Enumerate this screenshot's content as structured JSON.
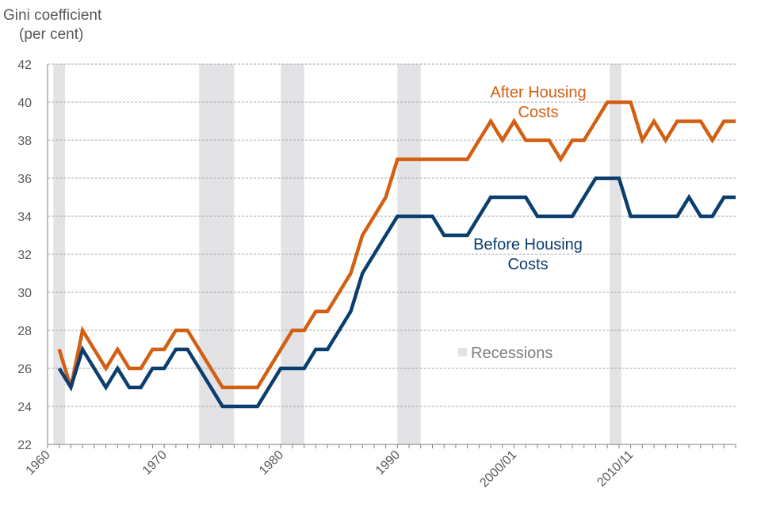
{
  "chart_data": {
    "type": "line",
    "ylabel_line1": "Gini coefficient",
    "ylabel_line2": "(per cent)",
    "ylim": [
      22,
      42
    ],
    "yticks": [
      22,
      24,
      26,
      28,
      30,
      32,
      34,
      36,
      38,
      40,
      42
    ],
    "xlim": [
      1960,
      2019
    ],
    "xticks": [
      {
        "label": "1960",
        "value": 1960
      },
      {
        "label": "1970",
        "value": 1970
      },
      {
        "label": "1980",
        "value": 1980
      },
      {
        "label": "1990",
        "value": 1990
      },
      {
        "label": "2000/01",
        "value": 2000
      },
      {
        "label": "2010/11",
        "value": 2010
      }
    ],
    "recessions": [
      [
        1960.5,
        1961.5
      ],
      [
        1973,
        1976
      ],
      [
        1980,
        1982
      ],
      [
        1990,
        1992
      ],
      [
        2008.2,
        2009.2
      ]
    ],
    "legend_recessions": "Recessions",
    "series": [
      {
        "name": "After Housing Costs",
        "label_line1": "After Housing",
        "label_line2": "Costs",
        "color": "#d35f12",
        "x": [
          1961,
          1962,
          1963,
          1964,
          1965,
          1966,
          1967,
          1968,
          1969,
          1970,
          1971,
          1972,
          1973,
          1974,
          1975,
          1976,
          1977,
          1978,
          1979,
          1980,
          1981,
          1982,
          1983,
          1984,
          1985,
          1986,
          1987,
          1988,
          1989,
          1990,
          1991,
          1992,
          1993,
          1994,
          1995,
          1996,
          1997,
          1998,
          1999,
          2000,
          2001,
          2002,
          2003,
          2004,
          2005,
          2006,
          2007,
          2008,
          2009,
          2010,
          2011,
          2012,
          2013,
          2014,
          2015,
          2016,
          2017,
          2018,
          2019
        ],
        "values": [
          27,
          25,
          28,
          27,
          26,
          27,
          26,
          26,
          27,
          27,
          28,
          28,
          27,
          26,
          25,
          25,
          25,
          25,
          26,
          27,
          28,
          28,
          29,
          29,
          30,
          31,
          33,
          34,
          35,
          37,
          37,
          37,
          37,
          37,
          37,
          37,
          38,
          39,
          38,
          39,
          38,
          38,
          38,
          37,
          38,
          38,
          39,
          40,
          40,
          40,
          38,
          39,
          38,
          39,
          39,
          39,
          38,
          39,
          39
        ]
      },
      {
        "name": "Before Housing Costs",
        "label_line1": "Before Housing",
        "label_line2": "Costs",
        "color": "#0b3e6e",
        "x": [
          1961,
          1962,
          1963,
          1964,
          1965,
          1966,
          1967,
          1968,
          1969,
          1970,
          1971,
          1972,
          1973,
          1974,
          1975,
          1976,
          1977,
          1978,
          1979,
          1980,
          1981,
          1982,
          1983,
          1984,
          1985,
          1986,
          1987,
          1988,
          1989,
          1990,
          1991,
          1992,
          1993,
          1994,
          1995,
          1996,
          1997,
          1998,
          1999,
          2000,
          2001,
          2002,
          2003,
          2004,
          2005,
          2006,
          2007,
          2008,
          2009,
          2010,
          2011,
          2012,
          2013,
          2014,
          2015,
          2016,
          2017,
          2018,
          2019
        ],
        "values": [
          26,
          25,
          27,
          26,
          25,
          26,
          25,
          25,
          26,
          26,
          27,
          27,
          26,
          25,
          24,
          24,
          24,
          24,
          25,
          26,
          26,
          26,
          27,
          27,
          28,
          29,
          31,
          32,
          33,
          34,
          34,
          34,
          34,
          33,
          33,
          33,
          34,
          35,
          35,
          35,
          35,
          34,
          34,
          34,
          34,
          35,
          36,
          36,
          36,
          34,
          34,
          34,
          34,
          34,
          35,
          34,
          34,
          35,
          35
        ]
      }
    ]
  }
}
